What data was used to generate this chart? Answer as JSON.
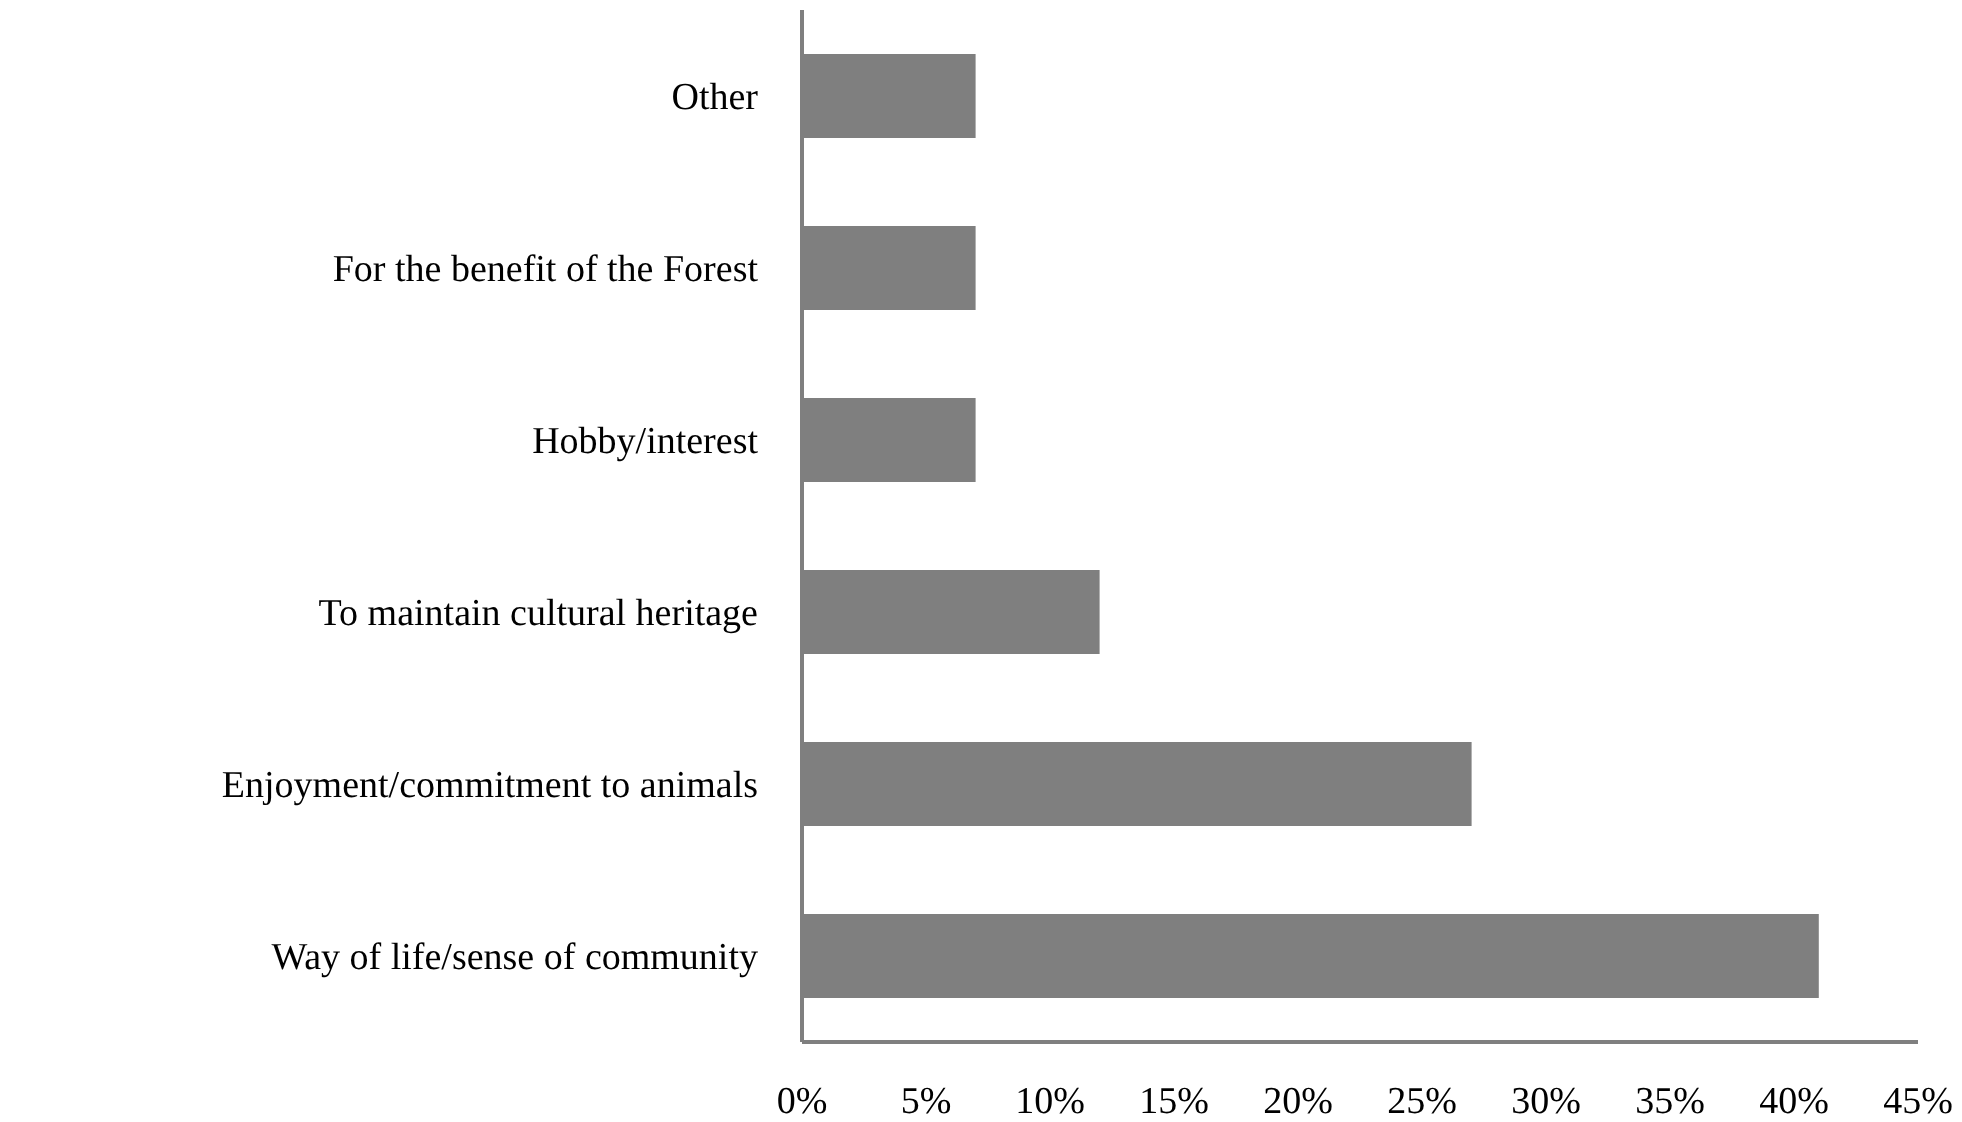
{
  "chart_data": {
    "type": "bar",
    "orientation": "horizontal",
    "categories": [
      "Other",
      "For the benefit of the Forest",
      "Hobby/interest",
      "To maintain cultural heritage",
      "Enjoyment/commitment to animals",
      "Way of life/sense of community"
    ],
    "values": [
      7,
      7,
      7,
      12,
      27,
      41
    ],
    "color": "#7f7f7f",
    "xlim": [
      0,
      45
    ],
    "xticks": [
      {
        "value": 0,
        "label": "0%"
      },
      {
        "value": 5,
        "label": "5%"
      },
      {
        "value": 10,
        "label": "10%"
      },
      {
        "value": 15,
        "label": "15%"
      },
      {
        "value": 20,
        "label": "20%"
      },
      {
        "value": 25,
        "label": "25%"
      },
      {
        "value": 30,
        "label": "30%"
      },
      {
        "value": 35,
        "label": "35%"
      },
      {
        "value": 40,
        "label": "40%"
      },
      {
        "value": 45,
        "label": "45%"
      }
    ]
  }
}
